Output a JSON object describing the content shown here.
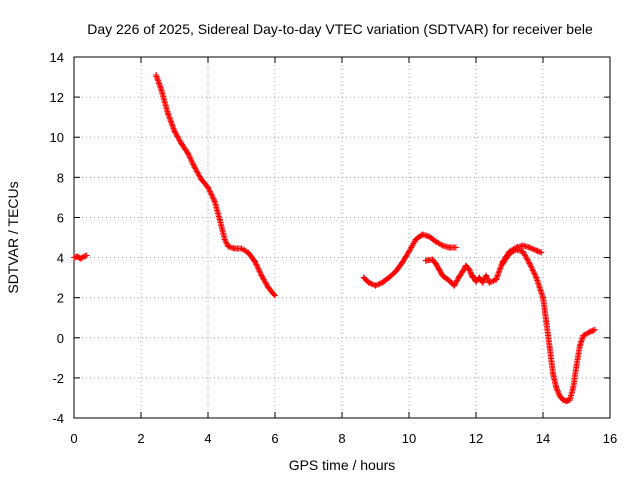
{
  "chart_data": {
    "type": "scatter",
    "title": "Day 226 of 2025, Sidereal Day-to-day VTEC variation (SDTVAR) for receiver bele",
    "xlabel": "GPS time / hours",
    "ylabel": "SDTVAR / TECUs",
    "xlim": [
      0,
      16
    ],
    "ylim": [
      -4,
      14
    ],
    "xticks": [
      0,
      2,
      4,
      6,
      8,
      10,
      12,
      14,
      16
    ],
    "yticks": [
      -4,
      -2,
      0,
      2,
      4,
      6,
      8,
      10,
      12,
      14
    ],
    "grid": true,
    "marker": "+",
    "series": [
      {
        "name": "SDTVAR",
        "color": "#ff0000",
        "segments": [
          {
            "x": [
              0.0,
              0.1,
              0.2,
              0.3,
              0.38
            ],
            "y": [
              4.0,
              4.05,
              3.95,
              4.05,
              4.1
            ]
          },
          {
            "x": [
              2.45,
              2.6,
              2.8,
              3.0,
              3.2,
              3.4,
              3.6,
              3.8,
              4.0,
              4.2,
              4.35,
              4.5,
              4.6,
              4.8,
              5.0,
              5.2,
              5.4,
              5.6,
              5.8,
              6.0
            ],
            "y": [
              13.1,
              12.4,
              11.2,
              10.3,
              9.7,
              9.2,
              8.5,
              7.9,
              7.5,
              6.8,
              5.9,
              4.9,
              4.55,
              4.45,
              4.45,
              4.25,
              3.8,
              3.1,
              2.5,
              2.1
            ]
          },
          {
            "x": [
              8.65,
              8.8,
              9.0,
              9.2,
              9.4,
              9.6,
              9.8,
              10.0,
              10.2,
              10.4,
              10.6,
              10.8,
              11.0,
              11.2,
              11.4
            ],
            "y": [
              3.0,
              2.75,
              2.6,
              2.75,
              3.0,
              3.3,
              3.75,
              4.3,
              4.9,
              5.15,
              5.05,
              4.8,
              4.6,
              4.5,
              4.5
            ]
          },
          {
            "x": [
              10.5,
              10.7,
              10.8,
              10.9,
              11.0,
              11.2,
              11.35,
              11.5,
              11.6,
              11.7,
              11.8,
              11.9
            ],
            "y": [
              3.85,
              3.9,
              3.7,
              3.4,
              3.1,
              2.85,
              2.6,
              3.05,
              3.3,
              3.6,
              3.4,
              3.0
            ]
          },
          {
            "x": [
              11.9,
              12.0,
              12.1,
              12.2,
              12.3,
              12.4,
              12.6,
              12.8,
              13.0,
              13.2,
              13.4,
              13.6,
              13.8,
              13.95
            ],
            "y": [
              3.1,
              2.8,
              3.0,
              2.75,
              3.1,
              2.75,
              2.9,
              3.8,
              4.3,
              4.5,
              4.6,
              4.5,
              4.35,
              4.25
            ]
          },
          {
            "x": [
              12.8,
              13.0,
              13.2,
              13.4,
              13.6,
              13.8,
              14.0,
              14.1,
              14.2,
              14.3,
              14.4,
              14.5,
              14.6,
              14.7,
              14.8,
              14.9,
              15.0,
              15.1,
              15.2,
              15.4,
              15.55
            ],
            "y": [
              3.7,
              4.2,
              4.4,
              4.3,
              3.7,
              3.0,
              2.0,
              0.8,
              -0.5,
              -1.8,
              -2.5,
              -2.9,
              -3.1,
              -3.15,
              -3.1,
              -2.5,
              -1.4,
              -0.4,
              0.1,
              0.3,
              0.4
            ]
          }
        ]
      }
    ]
  }
}
